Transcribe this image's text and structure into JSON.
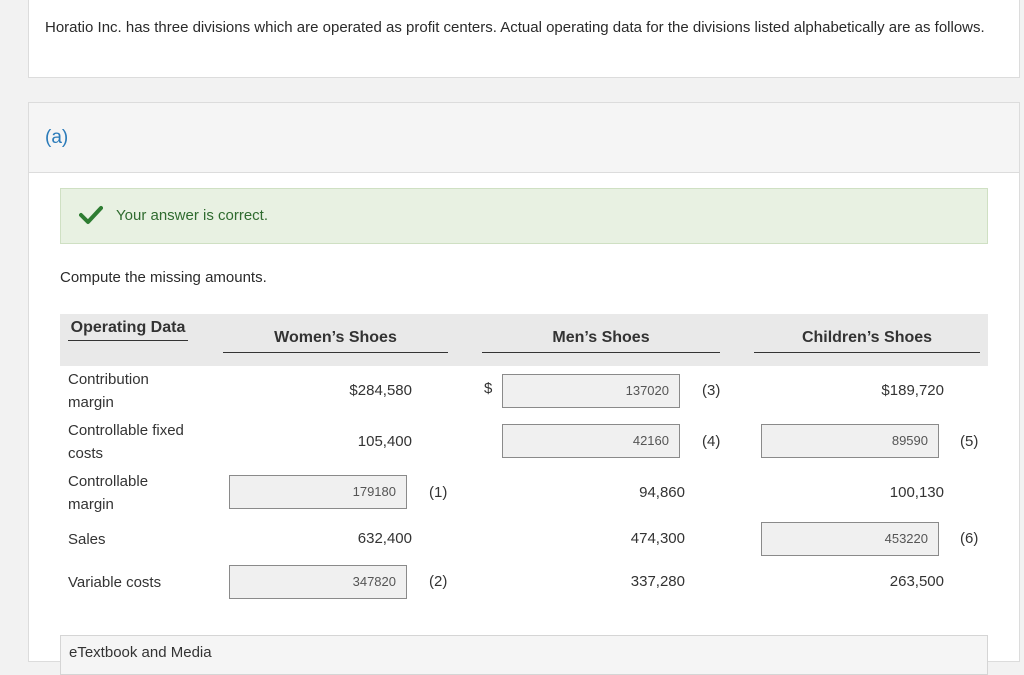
{
  "intro": {
    "text": "Horatio Inc. has three divisions which are operated as profit centers. Actual operating data for the divisions listed alphabetically are as follows."
  },
  "part": {
    "label": "(a)",
    "status": "Your answer is correct.",
    "prompt": "Compute the missing amounts."
  },
  "table": {
    "headers": {
      "data": "Operating Data",
      "womens": "Women’s Shoes",
      "mens": "Men’s Shoes",
      "childrens": "Children’s Shoes"
    },
    "rows": [
      {
        "label": "Contribution margin",
        "womens": "$284,580",
        "mens_prefix": "$",
        "mens_input": "137020",
        "mens_ref": "(3)",
        "childrens": "$189,720"
      },
      {
        "label": "Controllable fixed costs",
        "womens": "105,400",
        "mens_input": "42160",
        "mens_ref": "(4)",
        "childrens_input": "89590",
        "childrens_ref": "(5)"
      },
      {
        "label": "Controllable margin",
        "womens_input": "179180",
        "womens_ref": "(1)",
        "mens": "94,860",
        "childrens": "100,130"
      },
      {
        "label": "Sales",
        "womens": "632,400",
        "mens": "474,300",
        "childrens_input": "453220",
        "childrens_ref": "(6)"
      },
      {
        "label": "Variable costs",
        "womens_input": "347820",
        "womens_ref": "(2)",
        "mens": "337,280",
        "childrens": "263,500"
      }
    ]
  },
  "ebook": {
    "label": "eTextbook and Media"
  },
  "colors": {
    "accent": "#2b7bb9",
    "success_bg": "#e8f1e2",
    "check": "#2e7d32"
  }
}
